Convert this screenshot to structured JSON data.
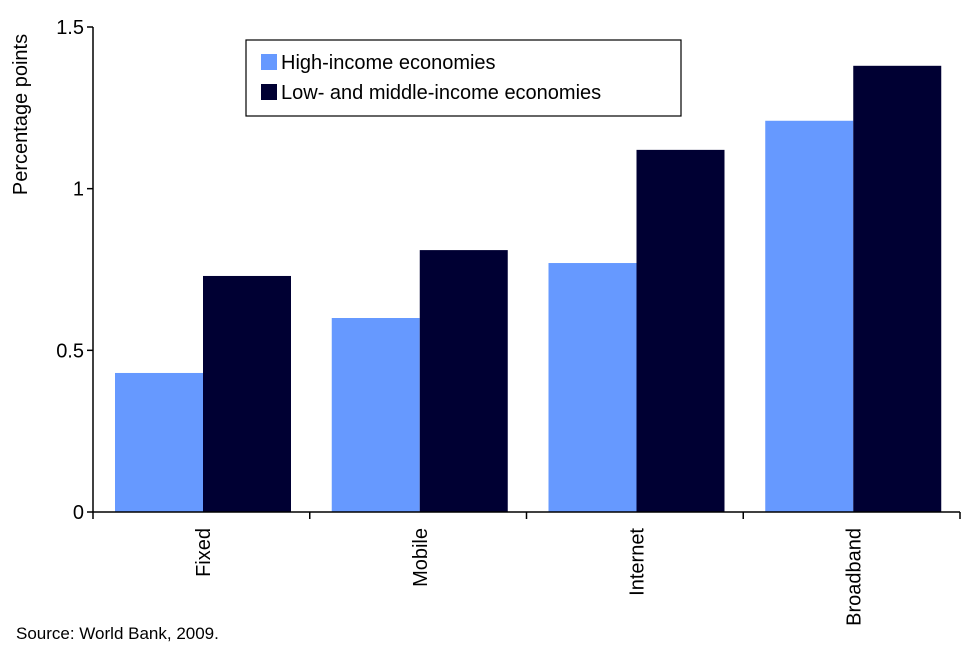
{
  "chart_data": {
    "type": "bar",
    "title": "",
    "xlabel": "",
    "ylabel": "Percentage points",
    "ylim": [
      0,
      1.5
    ],
    "yticks": [
      "0",
      "0.5",
      "1",
      "1.5"
    ],
    "categories": [
      "Fixed",
      "Mobile",
      "Internet",
      "Broadband"
    ],
    "series": [
      {
        "name": "High-income economies",
        "color": "#6699ff",
        "values": [
          0.43,
          0.6,
          0.77,
          1.21
        ]
      },
      {
        "name": "Low- and middle-income economies",
        "color": "#000033",
        "values": [
          0.73,
          0.81,
          1.12,
          1.38
        ]
      }
    ],
    "legend_position": "top-center",
    "grid": false
  },
  "source": "Source:  World Bank, 2009."
}
